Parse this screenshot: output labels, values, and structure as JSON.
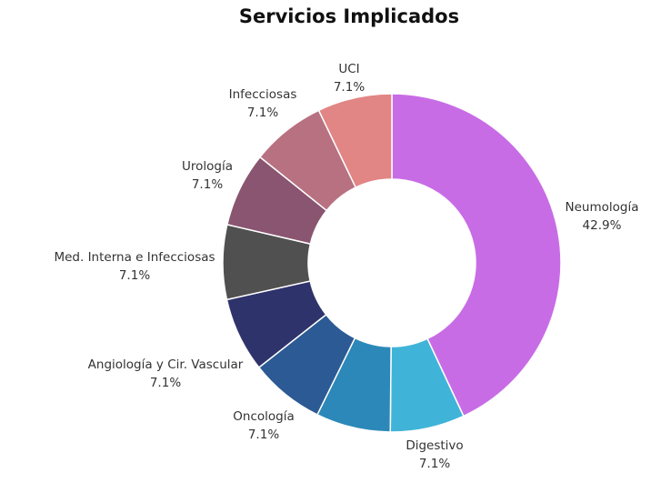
{
  "chart_data": {
    "type": "pie",
    "variant": "donut",
    "title": "Servicios Implicados",
    "slices": [
      {
        "label": "Neumología",
        "value": 42.9,
        "display": "42.9%",
        "color": "#c86ce6"
      },
      {
        "label": "Digestivo",
        "value": 7.1,
        "display": "7.1%",
        "color": "#40b4d8"
      },
      {
        "label": "Oncología",
        "value": 7.1,
        "display": "7.1%",
        "color": "#2c88b8"
      },
      {
        "label": "Angiología y Cir. Vascular",
        "value": 7.1,
        "display": "7.1%",
        "color": "#2c5a94"
      },
      {
        "label": "Med. Interna e Infecciosas",
        "value": 7.1,
        "display": "7.1%",
        "color": "#2f336b"
      },
      {
        "label": "Urología",
        "value": 7.1,
        "display": "7.1%",
        "color": "#505050"
      },
      {
        "label": "Infecciosas",
        "value": 7.1,
        "display": "7.1%",
        "color": "#8a5570"
      },
      {
        "label": "UCI",
        "value": 7.1,
        "display": "7.1%",
        "color": "#b87180"
      }
    ],
    "extra_slice": {
      "value": 7.1,
      "color": "#e28585"
    }
  }
}
